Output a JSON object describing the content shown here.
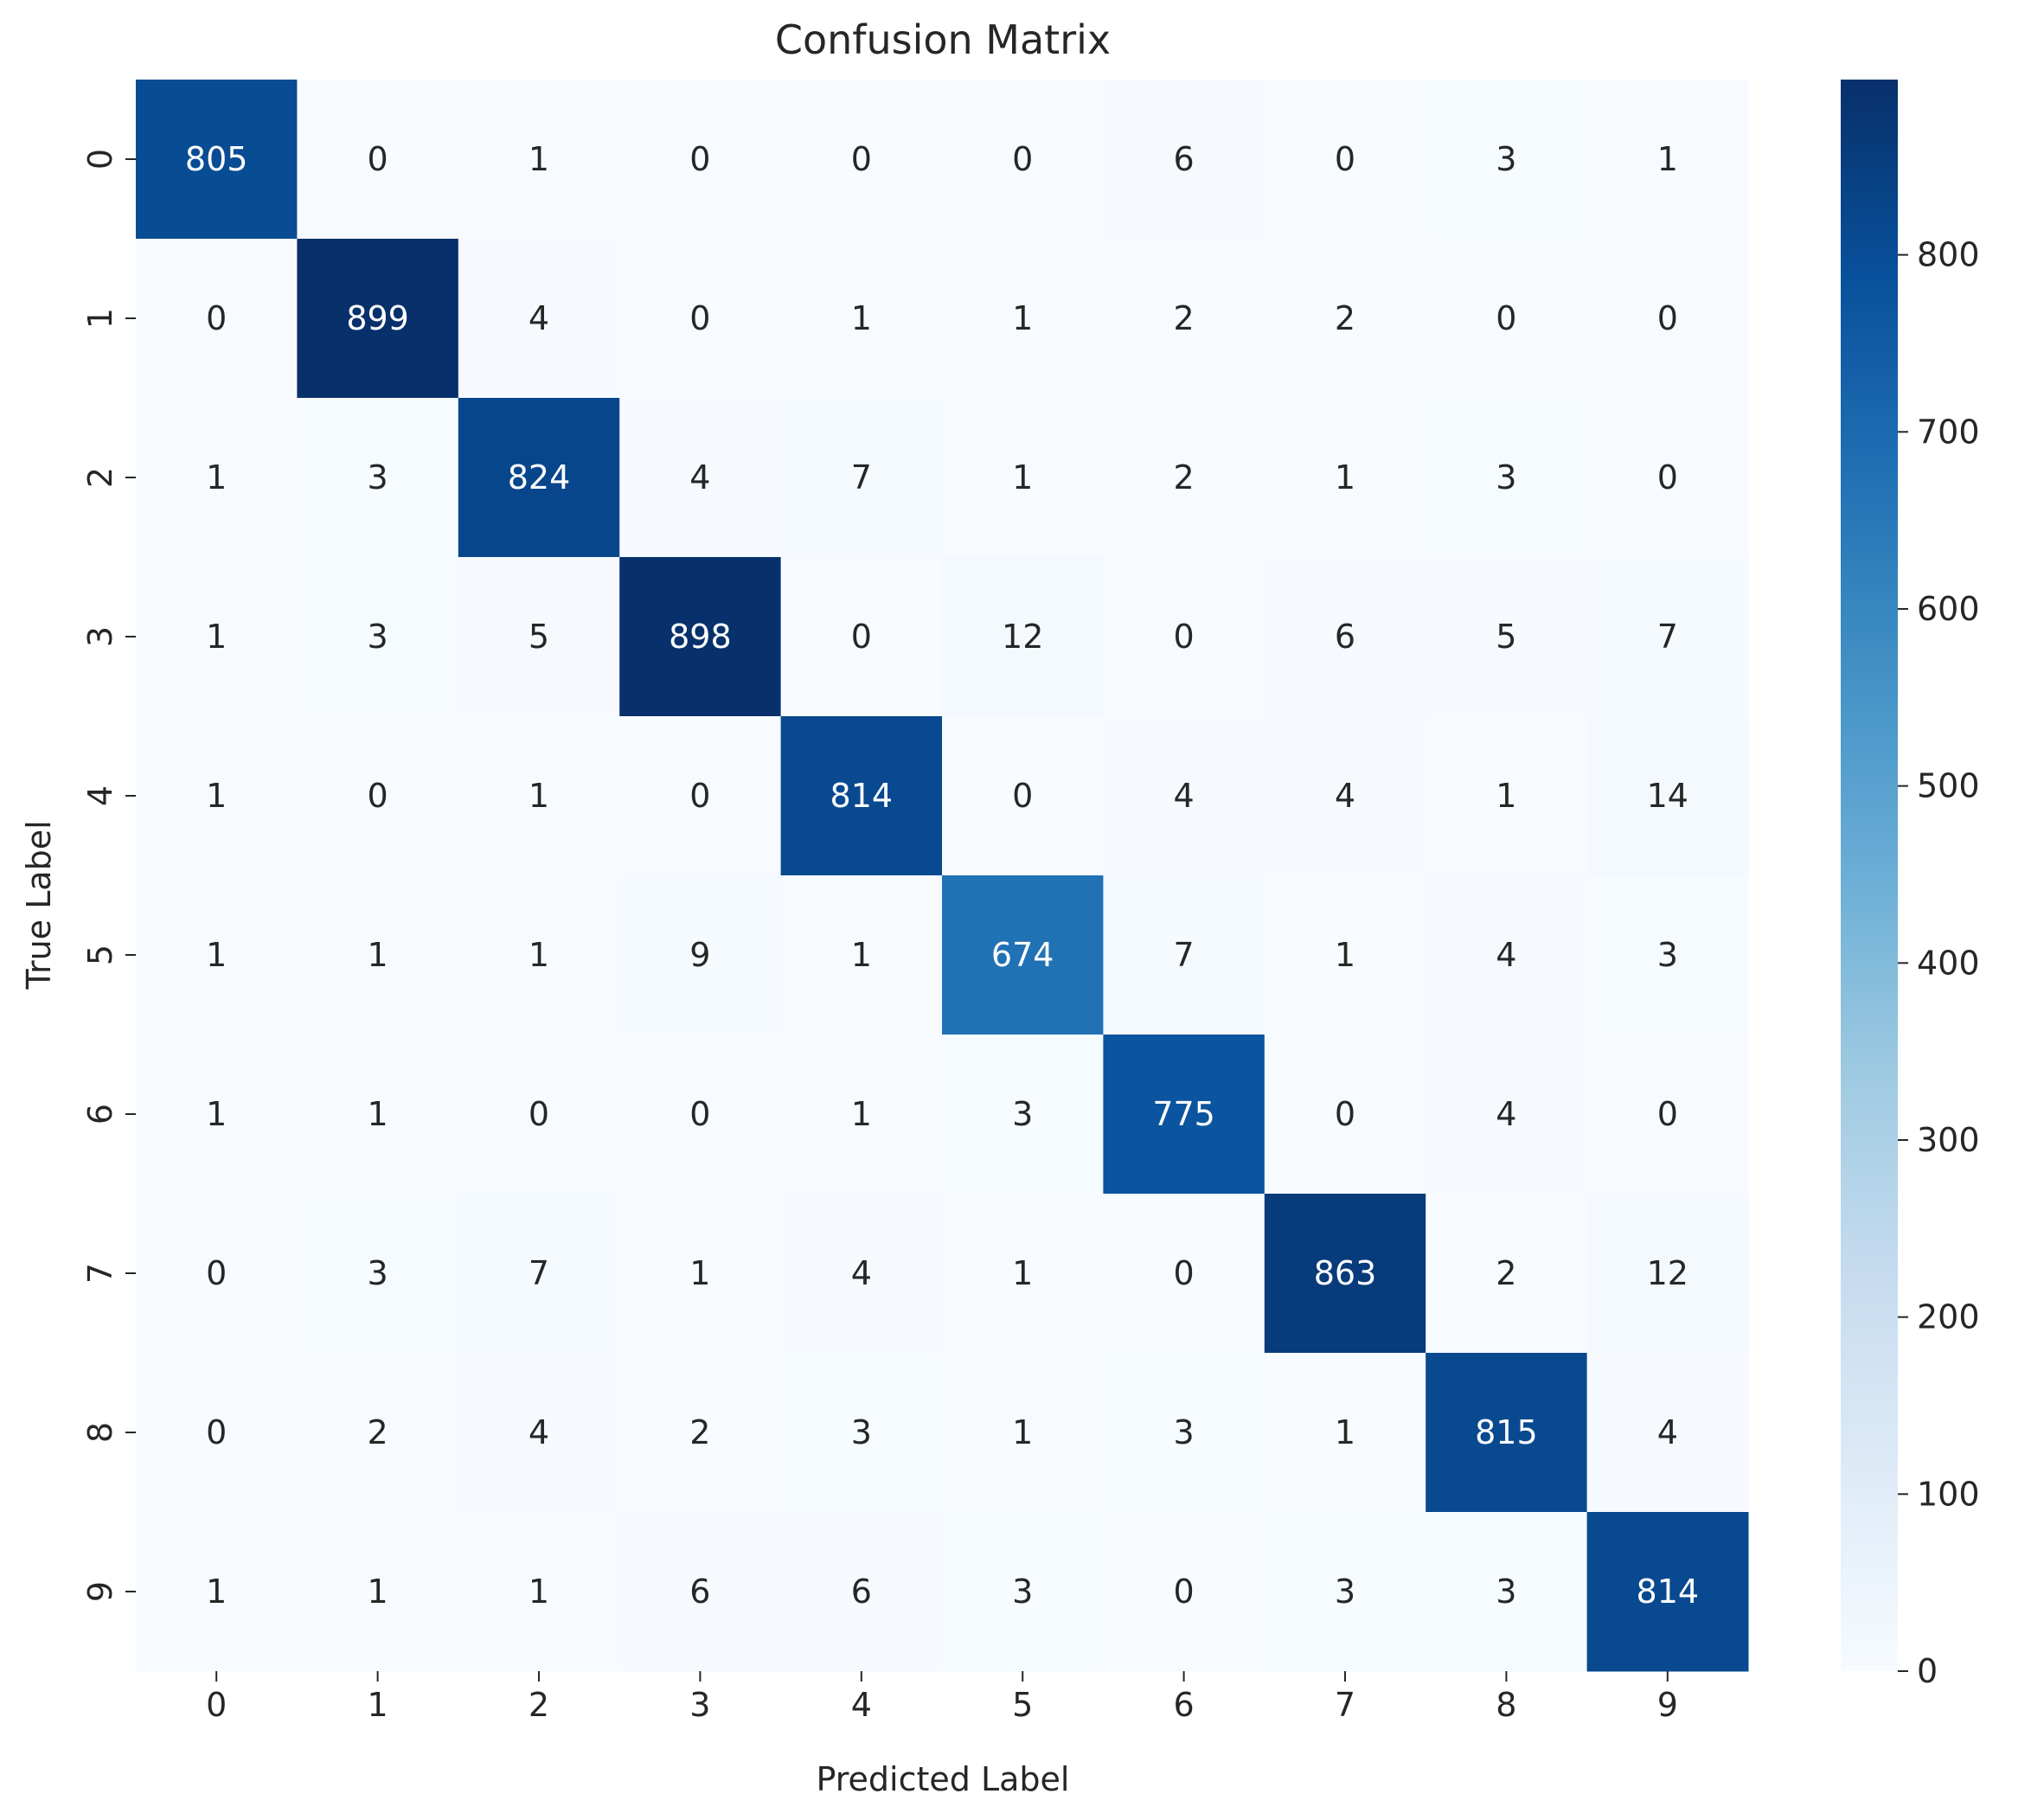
{
  "chart_data": {
    "type": "heatmap",
    "title": "Confusion Matrix",
    "xlabel": "Predicted Label",
    "ylabel": "True Label",
    "x_categories": [
      "0",
      "1",
      "2",
      "3",
      "4",
      "5",
      "6",
      "7",
      "8",
      "9"
    ],
    "y_categories": [
      "0",
      "1",
      "2",
      "3",
      "4",
      "5",
      "6",
      "7",
      "8",
      "9"
    ],
    "matrix": [
      [
        805,
        0,
        1,
        0,
        0,
        0,
        6,
        0,
        3,
        1
      ],
      [
        0,
        899,
        4,
        0,
        1,
        1,
        2,
        2,
        0,
        0
      ],
      [
        1,
        3,
        824,
        4,
        7,
        1,
        2,
        1,
        3,
        0
      ],
      [
        1,
        3,
        5,
        898,
        0,
        12,
        0,
        6,
        5,
        7
      ],
      [
        1,
        0,
        1,
        0,
        814,
        0,
        4,
        4,
        1,
        14
      ],
      [
        1,
        1,
        1,
        9,
        1,
        674,
        7,
        1,
        4,
        3
      ],
      [
        1,
        1,
        0,
        0,
        1,
        3,
        775,
        0,
        4,
        0
      ],
      [
        0,
        3,
        7,
        1,
        4,
        1,
        0,
        863,
        2,
        12
      ],
      [
        0,
        2,
        4,
        2,
        3,
        1,
        3,
        1,
        815,
        4
      ],
      [
        1,
        1,
        1,
        6,
        6,
        3,
        0,
        3,
        3,
        814
      ]
    ],
    "colorbar": {
      "colormap": "Blues",
      "range": [
        0,
        899
      ],
      "ticks": [
        0,
        100,
        200,
        300,
        400,
        500,
        600,
        700,
        800
      ]
    },
    "annotation_colors": {
      "dark_text": "#262626",
      "light_text": "#ffffff"
    }
  }
}
